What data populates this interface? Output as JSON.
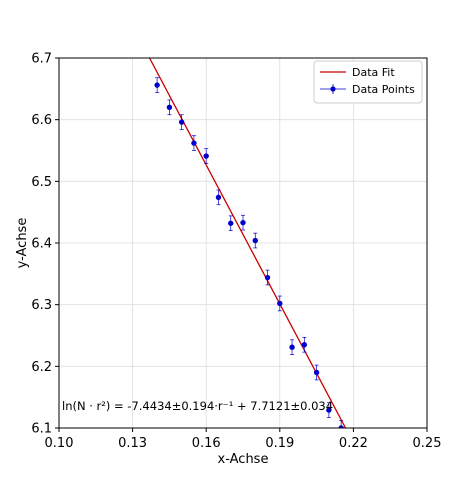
{
  "chart_data": {
    "type": "scatter",
    "xlabel": "x-Achse",
    "ylabel": "y-Achse",
    "xlim": [
      0.1,
      0.25
    ],
    "ylim": [
      6.1,
      6.7
    ],
    "xticks": [
      0.1,
      0.13,
      0.16,
      0.19,
      0.22,
      0.25
    ],
    "xtick_labels": [
      "0.10",
      "0.13",
      "0.16",
      "0.19",
      "0.22",
      "0.25"
    ],
    "yticks": [
      6.1,
      6.2,
      6.3,
      6.4,
      6.5,
      6.6,
      6.7
    ],
    "ytick_labels": [
      "6.1",
      "6.2",
      "6.3",
      "6.4",
      "6.5",
      "6.6",
      "6.7"
    ],
    "grid": true,
    "legend_position": "top-right",
    "legend": [
      "Data Fit",
      "Data Points"
    ],
    "annotation": "ln(N · r²) = -7.4434±0.194·r⁻¹ + 7.7121±0.034",
    "series": [
      {
        "name": "Data Fit",
        "kind": "line",
        "color": "#cc0000",
        "x": [
          0.1369,
          0.2168
        ],
        "y": [
          6.7,
          6.1
        ]
      },
      {
        "name": "Data Points",
        "kind": "errorbar",
        "color": "#0000cc",
        "x": [
          0.14,
          0.145,
          0.15,
          0.155,
          0.16,
          0.165,
          0.17,
          0.175,
          0.18,
          0.185,
          0.19,
          0.195,
          0.2,
          0.205,
          0.21,
          0.215
        ],
        "y": [
          6.656,
          6.62,
          6.596,
          6.562,
          6.541,
          6.474,
          6.432,
          6.433,
          6.404,
          6.344,
          6.302,
          6.231,
          6.235,
          6.19,
          6.129,
          6.1
        ],
        "yerr": [
          0.012,
          0.012,
          0.012,
          0.012,
          0.012,
          0.012,
          0.012,
          0.012,
          0.012,
          0.012,
          0.012,
          0.012,
          0.012,
          0.012,
          0.012,
          0.012
        ]
      }
    ]
  }
}
